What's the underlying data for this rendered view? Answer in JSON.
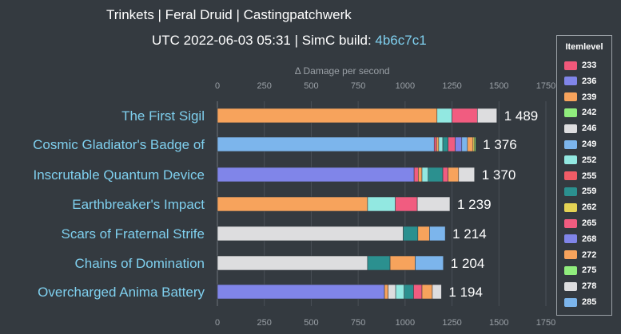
{
  "title": "Trinkets | Feral Druid | Castingpatchwerk",
  "subtitle": {
    "prefix": "UTC 2022-06-03 05:31 | SimC build: ",
    "build": "4b6c7c1"
  },
  "chart_data": {
    "type": "bar",
    "orientation": "horizontal",
    "stacked": true,
    "axis_label": "Δ Damage per second",
    "xlim": [
      0,
      1750
    ],
    "ticks": [
      0,
      250,
      500,
      750,
      1000,
      1250,
      1500,
      1750
    ],
    "legend_title": "Itemlevel",
    "legend_placement": "right",
    "itemlevels": [
      {
        "ilvl": "233",
        "color": "#f0587a"
      },
      {
        "ilvl": "236",
        "color": "#8085e9"
      },
      {
        "ilvl": "239",
        "color": "#f7a35c"
      },
      {
        "ilvl": "242",
        "color": "#90ed7d"
      },
      {
        "ilvl": "246",
        "color": "#dddddf"
      },
      {
        "ilvl": "249",
        "color": "#7cb5ec"
      },
      {
        "ilvl": "252",
        "color": "#92e8e1"
      },
      {
        "ilvl": "255",
        "color": "#f15c66"
      },
      {
        "ilvl": "259",
        "color": "#2b908f"
      },
      {
        "ilvl": "262",
        "color": "#e4d354"
      },
      {
        "ilvl": "265",
        "color": "#f15c80"
      },
      {
        "ilvl": "268",
        "color": "#8085e9"
      },
      {
        "ilvl": "272",
        "color": "#f7a35c"
      },
      {
        "ilvl": "275",
        "color": "#90ed7d"
      },
      {
        "ilvl": "278",
        "color": "#dddddf"
      },
      {
        "ilvl": "285",
        "color": "#7cb5ec"
      }
    ],
    "categories": [
      "The First Sigil",
      "Cosmic Gladiator's Badge of",
      "Inscrutable Quantum Device",
      "Earthbreaker's Impact",
      "Scars of Fraternal Strife",
      "Chains of Domination",
      "Overcharged Anima Battery"
    ],
    "totals": [
      "1 489",
      "1 376",
      "1 370",
      "1 239",
      "1 214",
      "1 204",
      "1 194"
    ],
    "bars": [
      [
        {
          "ilvl": "272",
          "value": 1170
        },
        {
          "ilvl": "252",
          "value": 80
        },
        {
          "ilvl": "265",
          "value": 135
        },
        {
          "ilvl": "278",
          "value": 104
        }
      ],
      [
        {
          "ilvl": "249",
          "value": 1155
        },
        {
          "ilvl": "265",
          "value": 12
        },
        {
          "ilvl": "239",
          "value": 12
        },
        {
          "ilvl": "252",
          "value": 22
        },
        {
          "ilvl": "259",
          "value": 28
        },
        {
          "ilvl": "265",
          "value": 38
        },
        {
          "ilvl": "268",
          "value": 35
        },
        {
          "ilvl": "285",
          "value": 30
        },
        {
          "ilvl": "272",
          "value": 30
        },
        {
          "ilvl": "262",
          "value": 8
        },
        {
          "ilvl": "275",
          "value": 6
        }
      ],
      [
        {
          "ilvl": "268",
          "value": 1048
        },
        {
          "ilvl": "265",
          "value": 22
        },
        {
          "ilvl": "239",
          "value": 20
        },
        {
          "ilvl": "252",
          "value": 33
        },
        {
          "ilvl": "259",
          "value": 78
        },
        {
          "ilvl": "265",
          "value": 28
        },
        {
          "ilvl": "272",
          "value": 56
        },
        {
          "ilvl": "278",
          "value": 85
        }
      ],
      [
        {
          "ilvl": "272",
          "value": 800
        },
        {
          "ilvl": "252",
          "value": 148
        },
        {
          "ilvl": "265",
          "value": 117
        },
        {
          "ilvl": "278",
          "value": 174
        }
      ],
      [
        {
          "ilvl": "278",
          "value": 990
        },
        {
          "ilvl": "259",
          "value": 78
        },
        {
          "ilvl": "272",
          "value": 62
        },
        {
          "ilvl": "285",
          "value": 84
        }
      ],
      [
        {
          "ilvl": "278",
          "value": 800
        },
        {
          "ilvl": "259",
          "value": 120
        },
        {
          "ilvl": "272",
          "value": 134
        },
        {
          "ilvl": "285",
          "value": 150
        }
      ],
      [
        {
          "ilvl": "268",
          "value": 890
        },
        {
          "ilvl": "239",
          "value": 20
        },
        {
          "ilvl": "278",
          "value": 40
        },
        {
          "ilvl": "252",
          "value": 45
        },
        {
          "ilvl": "259",
          "value": 50
        },
        {
          "ilvl": "265",
          "value": 45
        },
        {
          "ilvl": "272",
          "value": 55
        },
        {
          "ilvl": "278",
          "value": 49
        }
      ]
    ]
  }
}
